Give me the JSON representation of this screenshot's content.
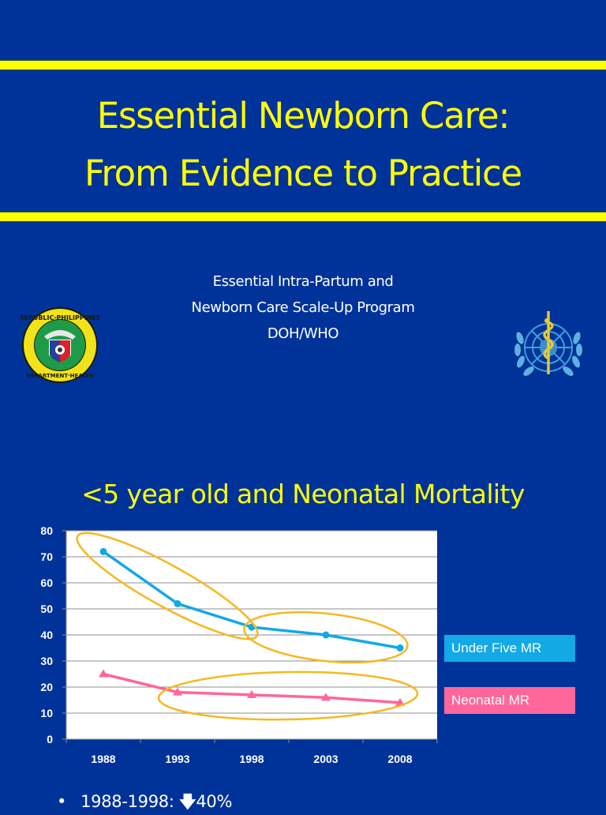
{
  "slide": {
    "background": "#003399",
    "accent": "#ffff00",
    "title_line1": "Essential Newborn Care:",
    "title_line2": "From Evidence to Practice",
    "subtitle_line1": "Essential Intra-Partum and",
    "subtitle_line2": "Newborn Care Scale-Up Program",
    "subtitle_line3": "DOH/WHO",
    "logos": {
      "left": "Department of Health seal (Republic of the Philippines)",
      "left_text_top": "REPUBLIC OF THE PHILIPPINES",
      "left_text_bottom": "DEPARTMENT OF HEALTH",
      "right": "World Health Organization emblem"
    },
    "chart_heading": "<5 year old and Neonatal Mortality",
    "bullet": {
      "range": "1988-1998:",
      "arrow_icon": "down-arrow-icon",
      "value": "40%"
    }
  },
  "chart_data": {
    "type": "line",
    "title": "<5 year old and Neonatal Mortality",
    "xlabel": "",
    "ylabel": "",
    "categories": [
      "1988",
      "1993",
      "1998",
      "2003",
      "2008"
    ],
    "ylim": [
      0,
      80
    ],
    "yticks": [
      "0",
      "10",
      "20",
      "30",
      "40",
      "50",
      "60",
      "70",
      "80"
    ],
    "grid": true,
    "legend_position": "right",
    "series": [
      {
        "name": "Under Five MR",
        "color": "#12a9e6",
        "marker": "circle",
        "values": [
          72,
          52,
          43,
          40,
          35
        ]
      },
      {
        "name": "Neonatal MR",
        "color": "#ff6699",
        "marker": "triangle",
        "values": [
          25,
          18,
          17,
          16,
          14
        ]
      }
    ],
    "annotations": [
      {
        "type": "ellipse",
        "color": "#f5b820",
        "covers": "Under Five MR 1988-1998"
      },
      {
        "type": "ellipse",
        "color": "#f5b820",
        "covers": "Under Five MR 1998-2008"
      },
      {
        "type": "ellipse",
        "color": "#f5b820",
        "covers": "Neonatal MR 1993-2008"
      }
    ]
  }
}
